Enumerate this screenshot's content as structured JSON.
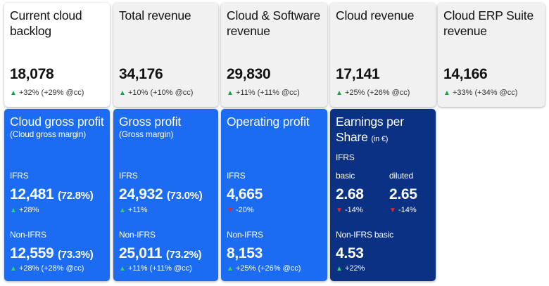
{
  "kpis": [
    {
      "title": "Current cloud backlog",
      "value": "18,078",
      "change": "+32% (+29% @cc)"
    },
    {
      "title": "Total revenue",
      "value": "34,176",
      "change": "+10% (+10% @cc)"
    },
    {
      "title": "Cloud & Software revenue",
      "value": "29,830",
      "change": "+11% (+11% @cc)"
    },
    {
      "title": "Cloud revenue",
      "value": "17,141",
      "change": "+25% (+26% @cc)"
    },
    {
      "title": "Cloud ERP Suite revenue",
      "value": "14,166",
      "change": "+33% (+34% @cc)"
    }
  ],
  "profit": [
    {
      "title": "Cloud gross profit",
      "subtitle": "(Cloud gross margin)",
      "ifrs_label": "IFRS",
      "ifrs_value": "12,481",
      "ifrs_margin": "(72.8%)",
      "ifrs_change": "+28%",
      "nonifrs_label": "Non-IFRS",
      "nonifrs_value": "12,559",
      "nonifrs_margin": "(73.3%)",
      "nonifrs_change": "+28% (+28% @cc)"
    },
    {
      "title": "Gross profit",
      "subtitle": "(Gross margin)",
      "ifrs_label": "IFRS",
      "ifrs_value": "24,932",
      "ifrs_margin": "(73.0%)",
      "ifrs_change": "+11%",
      "nonifrs_label": "Non-IFRS",
      "nonifrs_value": "25,011",
      "nonifrs_margin": "(73.2%)",
      "nonifrs_change": "+11% (+11% @cc)"
    },
    {
      "title": "Operating profit",
      "ifrs_label": "IFRS",
      "ifrs_value": "4,665",
      "ifrs_change": "-20%",
      "nonifrs_label": "Non-IFRS",
      "nonifrs_value": "8,153",
      "nonifrs_change": "+25% (+26% @cc)"
    }
  ],
  "eps": {
    "title_line1": "Earnings per",
    "title_line2": "Share",
    "unit": "(in €)",
    "ifrs_label": "IFRS",
    "basic_label": "basic",
    "diluted_label": "diluted",
    "basic_value": "2.68",
    "basic_change": "-14%",
    "diluted_value": "2.65",
    "diluted_change": "-14%",
    "nonifrs_label": "Non-IFRS basic",
    "nonifrs_value": "4.53",
    "nonifrs_change": "+22%"
  },
  "colors": {
    "blue_card": "#1b6cf2",
    "navy_card": "#0a3183",
    "arrow_up": "#1aa14a",
    "arrow_down": "#e8262b"
  }
}
